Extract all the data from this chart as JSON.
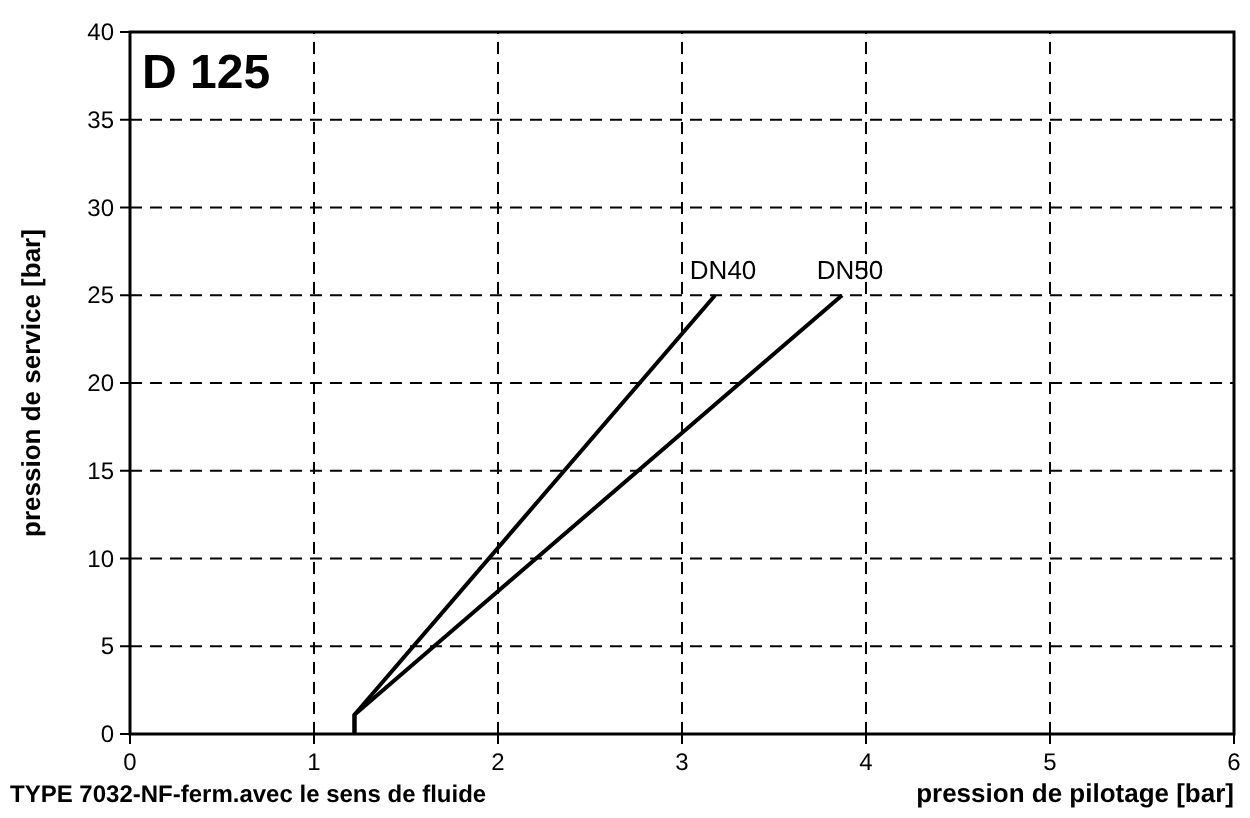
{
  "chart_data": {
    "type": "line",
    "title": "D 125",
    "xlabel": "pression de pilotage [bar]",
    "ylabel": "pression de service [bar]",
    "annotations": [
      "TYPE 7032-NF-ferm.avec le sens de fluide"
    ],
    "series": [
      {
        "name": "DN40",
        "color": "#000000",
        "x": [
          1.22,
          1.22,
          3.18
        ],
        "values": [
          0,
          1.1,
          25
        ]
      },
      {
        "name": "DN50",
        "color": "#000000",
        "x": [
          1.22,
          1.22,
          3.87
        ],
        "values": [
          0,
          1.1,
          25
        ]
      }
    ],
    "xlim": [
      0,
      6
    ],
    "ylim": [
      0,
      40
    ],
    "xticks": [
      0,
      1,
      2,
      3,
      4,
      5,
      6
    ],
    "yticks": [
      0,
      5,
      10,
      15,
      20,
      25,
      30,
      35,
      40
    ],
    "grid": true,
    "line_style": "solid",
    "marker": "none"
  }
}
